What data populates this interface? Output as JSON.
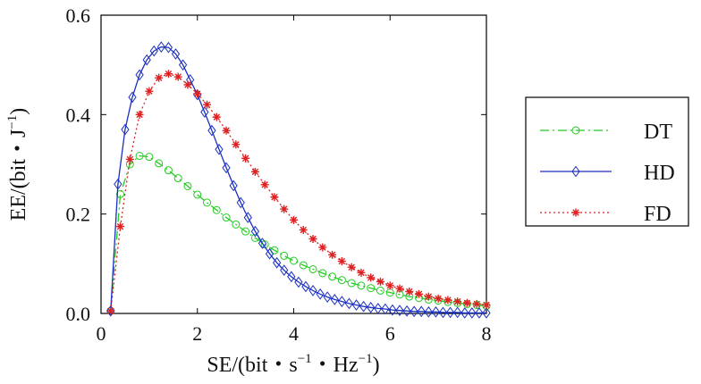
{
  "chart_data": {
    "type": "line",
    "xlabel": {
      "main": "SE/(bit・s",
      "sup1": "−1",
      "mid": "・Hz",
      "sup2": "−1",
      "end": ")"
    },
    "ylabel": {
      "main": "EE/(bit・J",
      "sup1": "−1",
      "end": ")"
    },
    "xlim": [
      0,
      8
    ],
    "ylim": [
      0,
      0.6
    ],
    "xticks": [
      0,
      2,
      4,
      6,
      8
    ],
    "xtick_labels": [
      "0",
      "2",
      "4",
      "6",
      "8"
    ],
    "yticks": [
      0.0,
      0.2,
      0.4,
      0.6
    ],
    "ytick_labels": [
      "0.0",
      "0.2",
      "0.4",
      "0.6"
    ],
    "grid": false,
    "legend_position": "right-outside",
    "series": [
      {
        "name": "DT",
        "color": "#22cc22",
        "line_style": "dash-dot",
        "marker": "circle",
        "x": [
          0.2,
          0.4,
          0.6,
          0.8,
          1.0,
          1.2,
          1.4,
          1.6,
          1.8,
          2.0,
          2.2,
          2.4,
          2.6,
          2.8,
          3.0,
          3.2,
          3.4,
          3.6,
          3.8,
          4.0,
          4.2,
          4.4,
          4.6,
          4.8,
          5.0,
          5.2,
          5.4,
          5.6,
          5.8,
          6.0,
          6.2,
          6.4,
          6.6,
          6.8,
          7.0,
          7.2,
          7.4,
          7.6,
          7.8,
          8.0
        ],
        "y": [
          0.005,
          0.24,
          0.3,
          0.317,
          0.315,
          0.302,
          0.288,
          0.272,
          0.256,
          0.239,
          0.223,
          0.208,
          0.193,
          0.179,
          0.165,
          0.152,
          0.139,
          0.127,
          0.116,
          0.106,
          0.097,
          0.089,
          0.081,
          0.074,
          0.067,
          0.061,
          0.056,
          0.051,
          0.046,
          0.042,
          0.038,
          0.034,
          0.031,
          0.028,
          0.026,
          0.023,
          0.021,
          0.019,
          0.017,
          0.015
        ]
      },
      {
        "name": "HD",
        "color": "#1a2fc0",
        "line_style": "solid",
        "marker": "diamond",
        "x": [
          0.2,
          0.35,
          0.5,
          0.65,
          0.8,
          0.95,
          1.1,
          1.25,
          1.4,
          1.55,
          1.7,
          1.85,
          2.0,
          2.15,
          2.3,
          2.45,
          2.6,
          2.75,
          2.9,
          3.05,
          3.2,
          3.35,
          3.5,
          3.65,
          3.8,
          3.95,
          4.1,
          4.25,
          4.4,
          4.55,
          4.7,
          4.85,
          5.0,
          5.15,
          5.3,
          5.45,
          5.6,
          5.75,
          5.9,
          6.05,
          6.2,
          6.35,
          6.5,
          6.65,
          6.8,
          6.95,
          7.1,
          7.25,
          7.4,
          7.55,
          7.7,
          7.85,
          8.0
        ],
        "y": [
          0.005,
          0.26,
          0.37,
          0.435,
          0.48,
          0.51,
          0.528,
          0.536,
          0.535,
          0.522,
          0.5,
          0.47,
          0.44,
          0.405,
          0.368,
          0.33,
          0.293,
          0.257,
          0.223,
          0.193,
          0.165,
          0.141,
          0.12,
          0.102,
          0.087,
          0.074,
          0.063,
          0.054,
          0.046,
          0.039,
          0.033,
          0.028,
          0.024,
          0.02,
          0.017,
          0.014,
          0.012,
          0.01,
          0.009,
          0.007,
          0.006,
          0.005,
          0.004,
          0.004,
          0.003,
          0.003,
          0.002,
          0.002,
          0.002,
          0.001,
          0.001,
          0.001,
          0.001
        ]
      },
      {
        "name": "FD",
        "color": "#e02020",
        "line_style": "dotted",
        "marker": "asterisk",
        "x": [
          0.2,
          0.4,
          0.6,
          0.8,
          1.0,
          1.2,
          1.4,
          1.6,
          1.8,
          2.0,
          2.2,
          2.4,
          2.6,
          2.8,
          3.0,
          3.2,
          3.4,
          3.6,
          3.8,
          4.0,
          4.2,
          4.4,
          4.6,
          4.8,
          5.0,
          5.2,
          5.4,
          5.6,
          5.8,
          6.0,
          6.2,
          6.4,
          6.6,
          6.8,
          7.0,
          7.2,
          7.4,
          7.6,
          7.8,
          8.0
        ],
        "y": [
          0.005,
          0.175,
          0.31,
          0.4,
          0.447,
          0.474,
          0.482,
          0.476,
          0.46,
          0.442,
          0.42,
          0.395,
          0.368,
          0.34,
          0.312,
          0.285,
          0.259,
          0.234,
          0.21,
          0.188,
          0.168,
          0.15,
          0.133,
          0.118,
          0.105,
          0.093,
          0.082,
          0.072,
          0.064,
          0.056,
          0.05,
          0.044,
          0.039,
          0.034,
          0.03,
          0.027,
          0.024,
          0.021,
          0.019,
          0.017
        ]
      }
    ]
  }
}
